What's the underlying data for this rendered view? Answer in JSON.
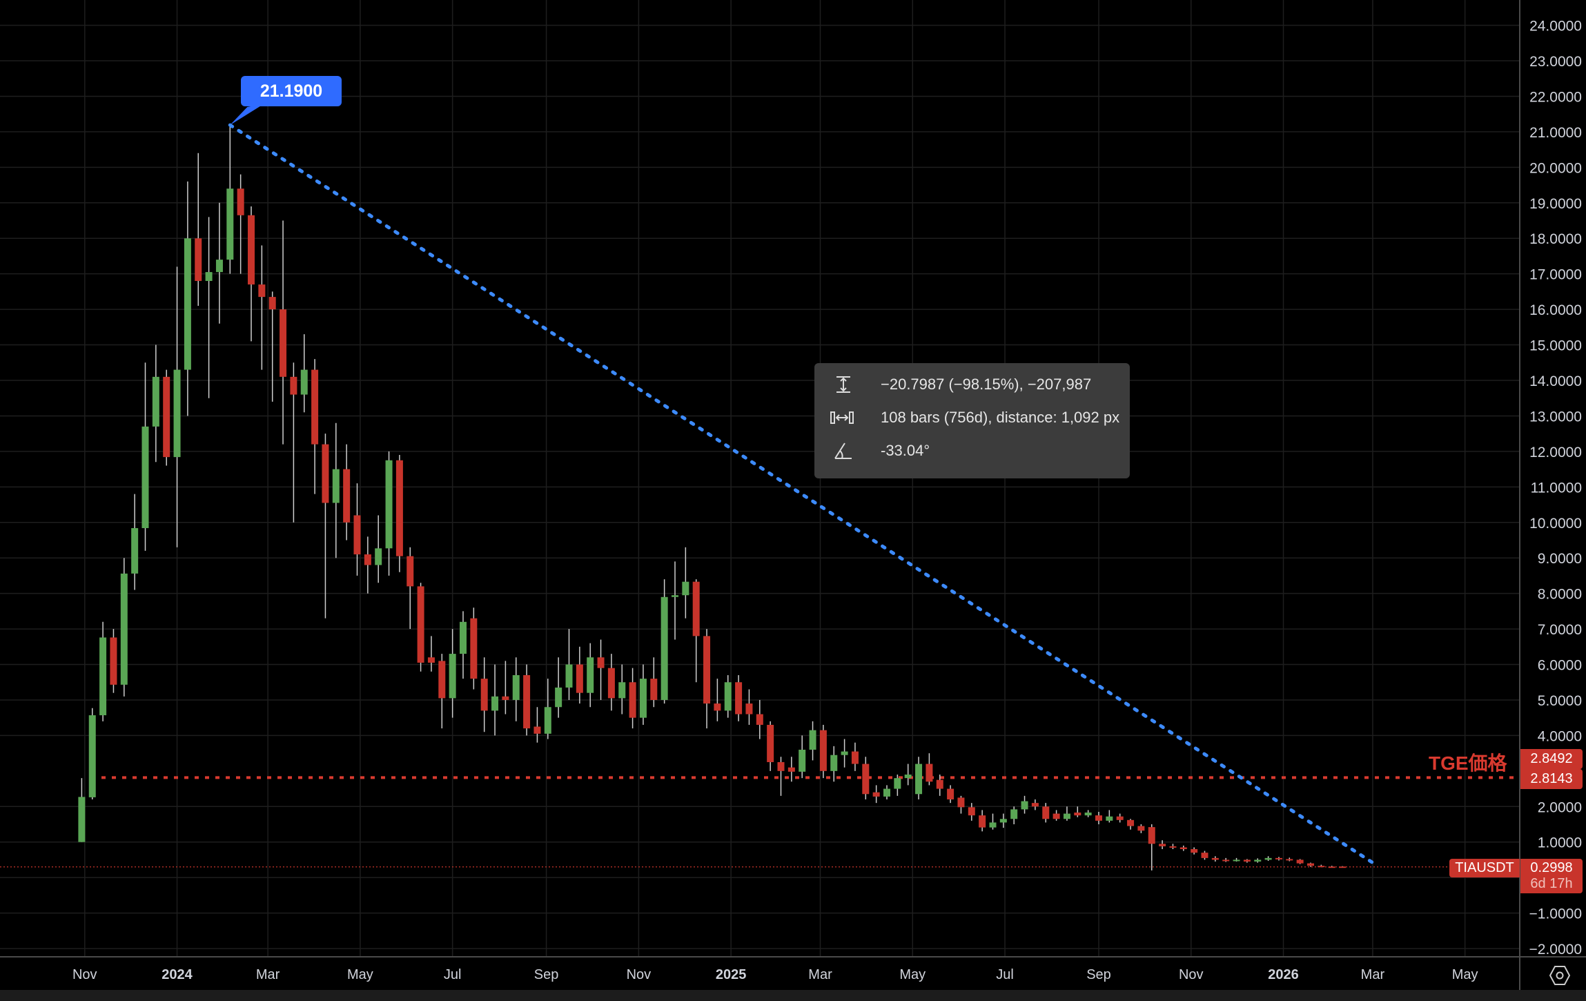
{
  "chart_data": {
    "type": "candlestick",
    "symbol": "TIAUSDT",
    "interval": "1W",
    "first_week": "2023-10-30",
    "ylim": [
      -2,
      24
    ],
    "grid": true,
    "colors": {
      "up": "#5aa655",
      "down": "#c8342b",
      "background": "#000000",
      "trendline": "#3d8bfd",
      "tge_line": "#d93a2f",
      "bubble": "#2f6bff"
    },
    "y_ticks": [
      {
        "v": 24,
        "label": "24.0000"
      },
      {
        "v": 23,
        "label": "23.0000"
      },
      {
        "v": 22,
        "label": "22.0000"
      },
      {
        "v": 21,
        "label": "21.0000"
      },
      {
        "v": 20,
        "label": "20.0000"
      },
      {
        "v": 19,
        "label": "19.0000"
      },
      {
        "v": 18,
        "label": "18.0000"
      },
      {
        "v": 17,
        "label": "17.0000"
      },
      {
        "v": 16,
        "label": "16.0000"
      },
      {
        "v": 15,
        "label": "15.0000"
      },
      {
        "v": 14,
        "label": "14.0000"
      },
      {
        "v": 13,
        "label": "13.0000"
      },
      {
        "v": 12,
        "label": "12.0000"
      },
      {
        "v": 11,
        "label": "11.0000"
      },
      {
        "v": 10,
        "label": "10.0000"
      },
      {
        "v": 9,
        "label": "9.0000"
      },
      {
        "v": 8,
        "label": "8.0000"
      },
      {
        "v": 7,
        "label": "7.0000"
      },
      {
        "v": 6,
        "label": "6.0000"
      },
      {
        "v": 5,
        "label": "5.0000"
      },
      {
        "v": 4,
        "label": "4.0000"
      },
      {
        "v": 2,
        "label": "2.0000"
      },
      {
        "v": 1,
        "label": "1.0000"
      },
      {
        "v": -1,
        "label": "−1.0000"
      },
      {
        "v": -2,
        "label": "−2.0000"
      }
    ],
    "x_ticks": [
      {
        "date": "2023-11-01",
        "label": "Nov",
        "bold": false
      },
      {
        "date": "2024-01-01",
        "label": "2024",
        "bold": true
      },
      {
        "date": "2024-03-01",
        "label": "Mar",
        "bold": false
      },
      {
        "date": "2024-05-01",
        "label": "May",
        "bold": false
      },
      {
        "date": "2024-07-01",
        "label": "Jul",
        "bold": false
      },
      {
        "date": "2024-09-01",
        "label": "Sep",
        "bold": false
      },
      {
        "date": "2024-11-01",
        "label": "Nov",
        "bold": false
      },
      {
        "date": "2025-01-01",
        "label": "2025",
        "bold": true
      },
      {
        "date": "2025-03-01",
        "label": "Mar",
        "bold": false
      },
      {
        "date": "2025-05-01",
        "label": "May",
        "bold": false
      },
      {
        "date": "2025-07-01",
        "label": "Jul",
        "bold": false
      },
      {
        "date": "2025-09-01",
        "label": "Sep",
        "bold": false
      },
      {
        "date": "2025-11-01",
        "label": "Nov",
        "bold": false
      },
      {
        "date": "2026-01-01",
        "label": "2026",
        "bold": true
      },
      {
        "date": "2026-03-01",
        "label": "Mar",
        "bold": false
      },
      {
        "date": "2026-05-01",
        "label": "May",
        "bold": false
      }
    ],
    "ohlc": [
      [
        1.0,
        2.8,
        1.0,
        2.27
      ],
      [
        2.26,
        4.77,
        2.2,
        4.57
      ],
      [
        4.57,
        7.2,
        4.4,
        6.76
      ],
      [
        6.76,
        7.0,
        5.2,
        5.43
      ],
      [
        5.43,
        9.0,
        5.1,
        8.56
      ],
      [
        8.56,
        10.8,
        8.1,
        9.84
      ],
      [
        9.84,
        14.5,
        9.2,
        12.7
      ],
      [
        12.7,
        15.0,
        11.7,
        14.1
      ],
      [
        14.1,
        14.3,
        11.6,
        11.84
      ],
      [
        11.84,
        17.2,
        9.3,
        14.3
      ],
      [
        14.3,
        19.6,
        13.0,
        18.0
      ],
      [
        18.0,
        20.4,
        16.1,
        16.8
      ],
      [
        16.8,
        18.6,
        13.5,
        17.05
      ],
      [
        17.05,
        19.0,
        15.6,
        17.4
      ],
      [
        17.4,
        21.19,
        17.0,
        19.4
      ],
      [
        19.4,
        19.8,
        17.0,
        18.65
      ],
      [
        18.65,
        18.9,
        15.1,
        16.7
      ],
      [
        16.7,
        17.8,
        14.3,
        16.35
      ],
      [
        16.35,
        16.5,
        13.4,
        16.0
      ],
      [
        16.0,
        18.5,
        12.2,
        14.1
      ],
      [
        14.1,
        14.5,
        10.0,
        13.6
      ],
      [
        13.6,
        15.3,
        13.1,
        14.3
      ],
      [
        14.3,
        14.6,
        10.8,
        12.2
      ],
      [
        12.2,
        12.5,
        7.3,
        10.55
      ],
      [
        10.55,
        12.8,
        9.0,
        11.5
      ],
      [
        11.5,
        12.2,
        9.5,
        10.0
      ],
      [
        10.2,
        11.1,
        8.5,
        9.1
      ],
      [
        9.1,
        9.6,
        8.0,
        8.8
      ],
      [
        8.8,
        10.2,
        8.3,
        9.27
      ],
      [
        9.27,
        12.0,
        8.5,
        11.75
      ],
      [
        11.75,
        11.9,
        8.6,
        9.05
      ],
      [
        9.05,
        9.3,
        7.0,
        8.2
      ],
      [
        8.2,
        8.3,
        5.8,
        6.05
      ],
      [
        6.2,
        6.8,
        5.8,
        6.05
      ],
      [
        6.1,
        6.3,
        4.2,
        5.05
      ],
      [
        5.05,
        7.0,
        4.5,
        6.3
      ],
      [
        6.3,
        7.5,
        5.6,
        7.2
      ],
      [
        7.3,
        7.6,
        5.3,
        5.6
      ],
      [
        5.6,
        6.2,
        4.1,
        4.7
      ],
      [
        4.7,
        6.0,
        4.0,
        5.1
      ],
      [
        5.1,
        6.1,
        4.6,
        5.0
      ],
      [
        5.0,
        6.2,
        4.4,
        5.7
      ],
      [
        5.7,
        6.0,
        4.0,
        4.2
      ],
      [
        4.25,
        4.8,
        3.8,
        4.05
      ],
      [
        4.05,
        5.6,
        3.9,
        4.8
      ],
      [
        4.8,
        6.2,
        4.5,
        5.35
      ],
      [
        5.35,
        7.0,
        5.0,
        6.0
      ],
      [
        6.0,
        6.5,
        4.9,
        5.2
      ],
      [
        5.2,
        6.6,
        4.8,
        6.2
      ],
      [
        6.2,
        6.7,
        5.0,
        5.9
      ],
      [
        5.9,
        6.3,
        4.7,
        5.05
      ],
      [
        5.05,
        6.0,
        4.6,
        5.5
      ],
      [
        5.5,
        5.9,
        4.2,
        4.5
      ],
      [
        4.5,
        6.0,
        4.3,
        5.6
      ],
      [
        5.6,
        6.2,
        4.8,
        5.0
      ],
      [
        5.0,
        8.4,
        4.9,
        7.9
      ],
      [
        7.9,
        8.9,
        6.7,
        7.95
      ],
      [
        7.95,
        9.3,
        7.3,
        8.33
      ],
      [
        8.33,
        8.4,
        5.5,
        6.8
      ],
      [
        6.8,
        7.0,
        4.2,
        4.9
      ],
      [
        4.9,
        5.6,
        4.4,
        4.7
      ],
      [
        4.7,
        5.7,
        4.5,
        5.5
      ],
      [
        5.5,
        5.7,
        4.4,
        4.6
      ],
      [
        4.9,
        5.3,
        4.3,
        4.6
      ],
      [
        4.6,
        5.0,
        3.9,
        4.3
      ],
      [
        4.3,
        4.4,
        3.0,
        3.25
      ],
      [
        3.25,
        3.4,
        2.3,
        3.0
      ],
      [
        3.1,
        3.4,
        2.7,
        2.98
      ],
      [
        2.98,
        4.0,
        2.8,
        3.6
      ],
      [
        3.6,
        4.4,
        3.3,
        4.15
      ],
      [
        4.15,
        4.3,
        2.8,
        3.0
      ],
      [
        3.0,
        3.7,
        2.7,
        3.45
      ],
      [
        3.45,
        3.9,
        3.1,
        3.55
      ],
      [
        3.55,
        3.8,
        3.0,
        3.2
      ],
      [
        3.2,
        3.4,
        2.2,
        2.35
      ],
      [
        2.4,
        2.6,
        2.1,
        2.28
      ],
      [
        2.28,
        2.6,
        2.2,
        2.5
      ],
      [
        2.5,
        2.9,
        2.3,
        2.8
      ],
      [
        2.8,
        3.2,
        2.6,
        2.9
      ],
      [
        2.35,
        3.4,
        2.2,
        3.2
      ],
      [
        3.2,
        3.5,
        2.6,
        2.7
      ],
      [
        2.75,
        2.9,
        2.3,
        2.5
      ],
      [
        2.5,
        2.6,
        2.1,
        2.2
      ],
      [
        2.25,
        2.3,
        1.8,
        1.98
      ],
      [
        1.98,
        2.1,
        1.6,
        1.75
      ],
      [
        1.75,
        1.9,
        1.3,
        1.41
      ],
      [
        1.41,
        1.8,
        1.35,
        1.55
      ],
      [
        1.55,
        1.8,
        1.4,
        1.65
      ],
      [
        1.65,
        2.0,
        1.5,
        1.92
      ],
      [
        1.92,
        2.3,
        1.8,
        2.15
      ],
      [
        2.1,
        2.2,
        1.9,
        2.0
      ],
      [
        2.0,
        2.1,
        1.55,
        1.65
      ],
      [
        1.8,
        1.9,
        1.6,
        1.65
      ],
      [
        1.65,
        2.0,
        1.6,
        1.8
      ],
      [
        1.83,
        2.0,
        1.7,
        1.75
      ],
      [
        1.75,
        1.9,
        1.7,
        1.83
      ],
      [
        1.75,
        1.85,
        1.5,
        1.6
      ],
      [
        1.6,
        1.9,
        1.55,
        1.72
      ],
      [
        1.72,
        1.8,
        1.55,
        1.62
      ],
      [
        1.62,
        1.65,
        1.35,
        1.45
      ],
      [
        1.45,
        1.5,
        1.25,
        1.32
      ],
      [
        1.42,
        1.5,
        0.2,
        0.95
      ],
      [
        0.95,
        1.05,
        0.8,
        0.88
      ],
      [
        0.88,
        0.95,
        0.8,
        0.85
      ],
      [
        0.85,
        0.9,
        0.75,
        0.8
      ],
      [
        0.8,
        0.85,
        0.65,
        0.7
      ],
      [
        0.7,
        0.75,
        0.5,
        0.55
      ],
      [
        0.55,
        0.6,
        0.45,
        0.5
      ],
      [
        0.5,
        0.55,
        0.44,
        0.48
      ],
      [
        0.48,
        0.55,
        0.45,
        0.5
      ],
      [
        0.5,
        0.52,
        0.42,
        0.45
      ],
      [
        0.45,
        0.54,
        0.42,
        0.5
      ],
      [
        0.5,
        0.6,
        0.47,
        0.55
      ],
      [
        0.55,
        0.58,
        0.48,
        0.52
      ],
      [
        0.52,
        0.56,
        0.46,
        0.5
      ],
      [
        0.5,
        0.52,
        0.38,
        0.4
      ],
      [
        0.4,
        0.42,
        0.3,
        0.33
      ],
      [
        0.33,
        0.36,
        0.29,
        0.31
      ],
      [
        0.31,
        0.33,
        0.28,
        0.3
      ],
      [
        0.31,
        0.32,
        0.29,
        0.2998
      ]
    ],
    "trendline": {
      "from": {
        "bar": 14,
        "price": 21.19
      },
      "to": {
        "bar": 122,
        "price": 0.3913
      }
    },
    "tge_line": {
      "price": 2.8143,
      "label": "TGE価格"
    },
    "current_price": 0.2998
  },
  "peak_bubble": "21.1900",
  "measure": {
    "price_range": "−20.7987 (−98.15%), −207,987",
    "bars_range": "108 bars (756d), distance: 1,092 px",
    "angle": "-33.04°"
  },
  "price_labels": {
    "tge_high": "2.8492",
    "tge": "2.8143",
    "symbol": "TIAUSDT",
    "current": "0.2998",
    "countdown": "6d 17h"
  },
  "icons": {
    "settings": "hexagon-settings-icon"
  }
}
